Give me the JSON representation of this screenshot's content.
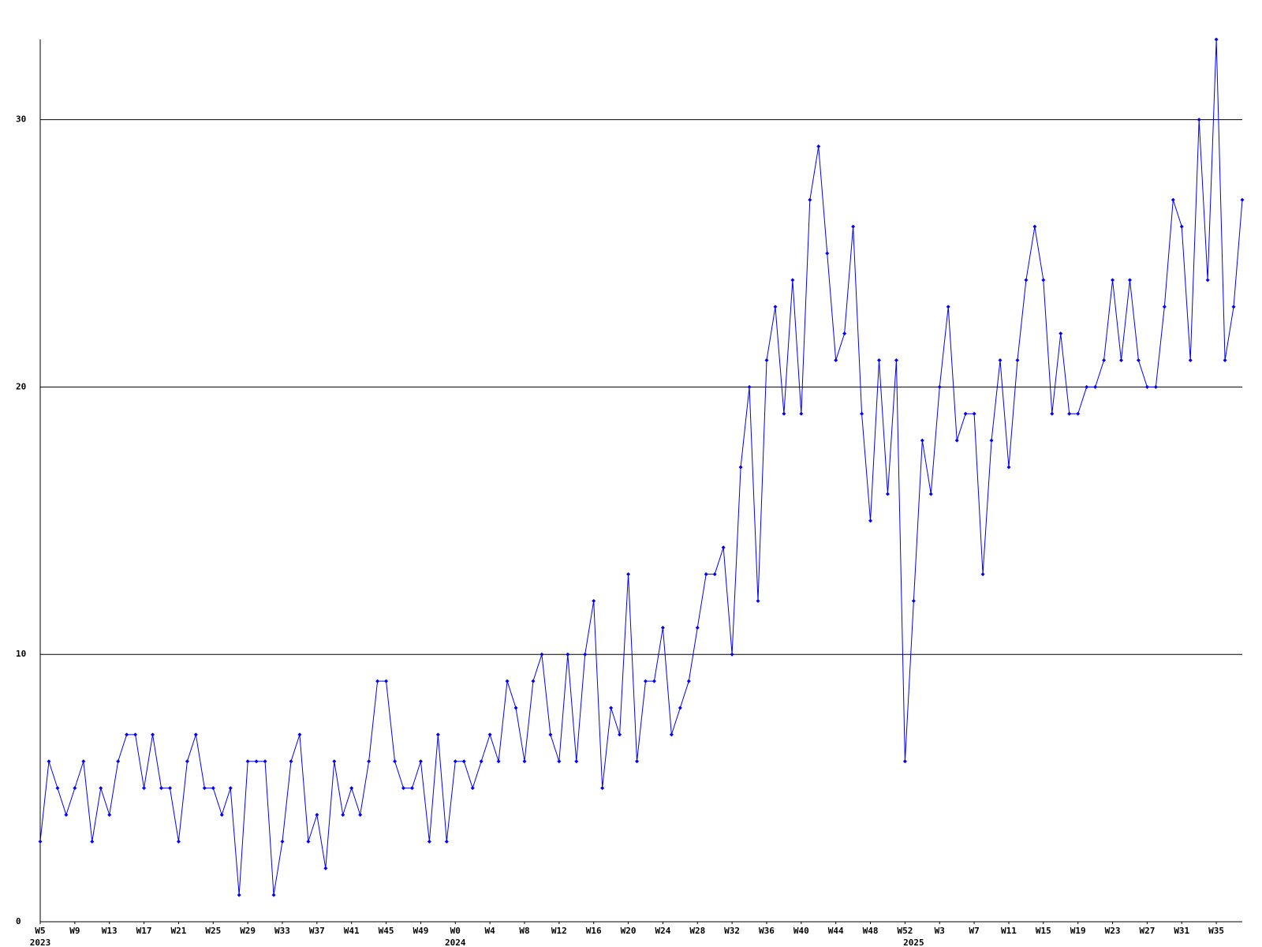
{
  "chart_data": {
    "type": "line",
    "categories": [
      "W5",
      null,
      null,
      null,
      "W9",
      null,
      null,
      null,
      "W13",
      null,
      null,
      null,
      "W17",
      null,
      null,
      null,
      "W21",
      null,
      null,
      null,
      "W25",
      null,
      null,
      null,
      "W29",
      null,
      null,
      null,
      "W33",
      null,
      null,
      null,
      "W37",
      null,
      null,
      null,
      "W41",
      null,
      null,
      null,
      "W45",
      null,
      null,
      null,
      "W49",
      null,
      null,
      null,
      "W0",
      null,
      null,
      null,
      "W4",
      null,
      null,
      null,
      "W8",
      null,
      null,
      null,
      "W12",
      null,
      null,
      null,
      "W16",
      null,
      null,
      null,
      "W20",
      null,
      null,
      null,
      "W24",
      null,
      null,
      null,
      "W28",
      null,
      null,
      null,
      "W32",
      null,
      null,
      null,
      "W36",
      null,
      null,
      null,
      "W40",
      null,
      null,
      null,
      "W44",
      null,
      null,
      null,
      "W48",
      null,
      null,
      null,
      "W52",
      null,
      null,
      null,
      "W3",
      null,
      null,
      null,
      "W7",
      null,
      null,
      null,
      "W11",
      null,
      null,
      null,
      "W15",
      null,
      null,
      null,
      "W19",
      null,
      null,
      null,
      "W23",
      null,
      null,
      null,
      "W27",
      null,
      null,
      null,
      "W31",
      null,
      null,
      null,
      "W35",
      null,
      null,
      null
    ],
    "years": [
      "2023",
      null,
      null,
      null,
      null,
      null,
      null,
      null,
      null,
      null,
      null,
      null,
      null,
      null,
      null,
      null,
      null,
      null,
      null,
      null,
      null,
      null,
      null,
      null,
      null,
      null,
      null,
      null,
      null,
      null,
      null,
      null,
      null,
      null,
      null,
      null,
      null,
      null,
      null,
      null,
      null,
      null,
      null,
      null,
      null,
      null,
      null,
      null,
      "2024",
      null,
      null,
      null,
      null,
      null,
      null,
      null,
      null,
      null,
      null,
      null,
      null,
      null,
      null,
      null,
      null,
      null,
      null,
      null,
      null,
      null,
      null,
      null,
      null,
      null,
      null,
      null,
      null,
      null,
      null,
      null,
      null,
      null,
      null,
      null,
      null,
      null,
      null,
      null,
      null,
      null,
      null,
      null,
      null,
      null,
      null,
      null,
      null,
      null,
      null,
      null,
      null,
      "2025",
      null,
      null,
      null,
      null,
      null,
      null,
      null,
      null,
      null,
      null,
      null,
      null,
      null,
      null,
      null,
      null,
      null,
      null,
      null,
      null,
      null,
      null,
      null,
      null,
      null,
      null,
      null,
      null,
      null,
      null,
      null,
      null,
      null,
      null,
      null,
      null,
      null,
      null
    ],
    "series": [
      {
        "color": "#0000ff",
        "values": [
          3,
          6,
          5,
          4,
          5,
          6,
          3,
          5,
          4,
          6,
          7,
          7,
          5,
          7,
          5,
          5,
          3,
          6,
          7,
          5,
          5,
          4,
          5,
          1,
          6,
          6,
          6,
          1,
          3,
          6,
          7,
          3,
          4,
          2,
          6,
          4,
          5,
          4,
          6,
          9,
          9,
          6,
          5,
          5,
          6,
          3,
          7,
          3,
          6,
          6,
          5,
          6,
          7,
          6,
          9,
          8,
          6,
          9,
          10,
          7,
          6,
          10,
          6,
          10,
          12,
          5,
          8,
          7,
          13,
          6,
          9,
          9,
          11,
          7,
          8,
          9,
          11,
          13,
          13,
          14,
          10,
          17,
          20,
          12,
          21,
          23,
          19,
          24,
          19,
          27,
          29,
          25,
          21,
          22,
          26,
          19,
          15,
          21,
          16,
          21,
          6,
          12,
          18,
          16,
          20,
          23,
          18,
          19,
          19,
          13,
          18,
          21,
          17,
          21,
          24,
          26,
          24,
          19,
          22,
          19,
          19,
          20,
          20,
          21,
          24,
          21,
          24,
          21,
          20,
          20,
          23,
          27,
          26,
          21,
          30,
          24,
          33,
          21,
          23,
          27
        ]
      }
    ],
    "ylim": [
      0,
      33
    ],
    "yticks": [
      0,
      10,
      20,
      30
    ],
    "grid": true
  }
}
